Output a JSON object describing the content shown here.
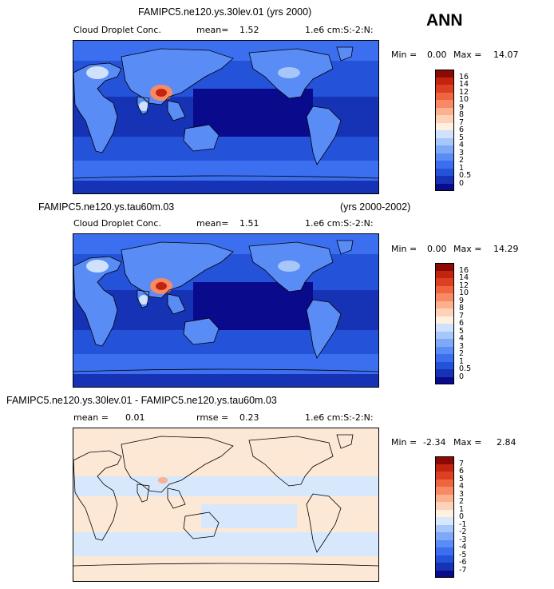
{
  "season": "ANN",
  "panels": [
    {
      "title": "FAMIPC5.ne120.ys.30lev.01 (yrs 2000)",
      "title_right": "",
      "left_label": "Cloud Droplet Conc.",
      "mid_label": "mean=",
      "mid_value": "1.52",
      "rmse_label": "",
      "rmse_value": "",
      "right_label": "1.e6 cm:S:-2:N:",
      "min_label": "Min =",
      "min_value": "0.00",
      "max_label": "Max =",
      "max_value": "14.07",
      "type": "abs"
    },
    {
      "title": "FAMIPC5.ne120.ys.tau60m.03",
      "title_right": "(yrs 2000-2002)",
      "left_label": "Cloud Droplet Conc.",
      "mid_label": "mean=",
      "mid_value": "1.51",
      "rmse_label": "",
      "rmse_value": "",
      "right_label": "1.e6 cm:S:-2:N:",
      "min_label": "Min =",
      "min_value": "0.00",
      "max_label": "Max =",
      "max_value": "14.29",
      "type": "abs"
    },
    {
      "title": "FAMIPC5.ne120.ys.30lev.01 - FAMIPC5.ne120.ys.tau60m.03",
      "title_right": "",
      "left_label": "mean =",
      "mid_label": "0.01",
      "mid_value": "",
      "rmse_label": "rmse =",
      "rmse_value": "0.23",
      "right_label": "1.e6 cm:S:-2:N:",
      "min_label": "Min =",
      "min_value": "-2.34",
      "max_label": "Max =",
      "max_value": "2.84",
      "type": "diff"
    }
  ],
  "chart_data": [
    {
      "type": "heatmap",
      "title": "FAMIPC5.ne120.ys.30lev.01 (yrs 2000)",
      "variable": "Cloud Droplet Conc.",
      "units": "1.e6 cm:S:-2:N:",
      "mean": 1.52,
      "min": 0.0,
      "max": 14.07,
      "colorbar_levels": [
        "0",
        "0.5",
        "1",
        "2",
        "3",
        "4",
        "5",
        "6",
        "7",
        "8",
        "9",
        "10",
        "12",
        "14",
        "16"
      ],
      "colorbar_colors": [
        "#0a0a8c",
        "#1533b4",
        "#2452d8",
        "#3b6ff0",
        "#5a8cf6",
        "#7ea8f8",
        "#a7c6fa",
        "#cfe1fc",
        "#fff0e0",
        "#fdd2b8",
        "#fbb08e",
        "#f78a64",
        "#ee6640",
        "#dd3f22",
        "#c22410",
        "#8b0a06"
      ],
      "season": "ANN"
    },
    {
      "type": "heatmap",
      "title": "FAMIPC5.ne120.ys.tau60m.03",
      "title_right": "(yrs 2000-2002)",
      "variable": "Cloud Droplet Conc.",
      "units": "1.e6 cm:S:-2:N:",
      "mean": 1.51,
      "min": 0.0,
      "max": 14.29,
      "colorbar_levels": [
        "0",
        "0.5",
        "1",
        "2",
        "3",
        "4",
        "5",
        "6",
        "7",
        "8",
        "9",
        "10",
        "12",
        "14",
        "16"
      ],
      "colorbar_colors": [
        "#0a0a8c",
        "#1533b4",
        "#2452d8",
        "#3b6ff0",
        "#5a8cf6",
        "#7ea8f8",
        "#a7c6fa",
        "#cfe1fc",
        "#fff0e0",
        "#fdd2b8",
        "#fbb08e",
        "#f78a64",
        "#ee6640",
        "#dd3f22",
        "#c22410",
        "#8b0a06"
      ]
    },
    {
      "type": "heatmap",
      "title": "FAMIPC5.ne120.ys.30lev.01 - FAMIPC5.ne120.ys.tau60m.03",
      "mean": 0.01,
      "rmse": 0.23,
      "units": "1.e6 cm:S:-2:N:",
      "min": -2.34,
      "max": 2.84,
      "colorbar_levels": [
        "-7",
        "-6",
        "-5",
        "-4",
        "-3",
        "-2",
        "-1",
        "0",
        "1",
        "2",
        "3",
        "4",
        "5",
        "6",
        "7"
      ],
      "colorbar_colors": [
        "#0a0a8c",
        "#1533b4",
        "#2452d8",
        "#3b6ff0",
        "#5a8cf6",
        "#7ea8f8",
        "#a7c6fa",
        "#d8e8fc",
        "#fff0e0",
        "#fdd2b8",
        "#fbb08e",
        "#f78a64",
        "#ee6640",
        "#dd3f22",
        "#c22410",
        "#8b0a06"
      ]
    }
  ]
}
